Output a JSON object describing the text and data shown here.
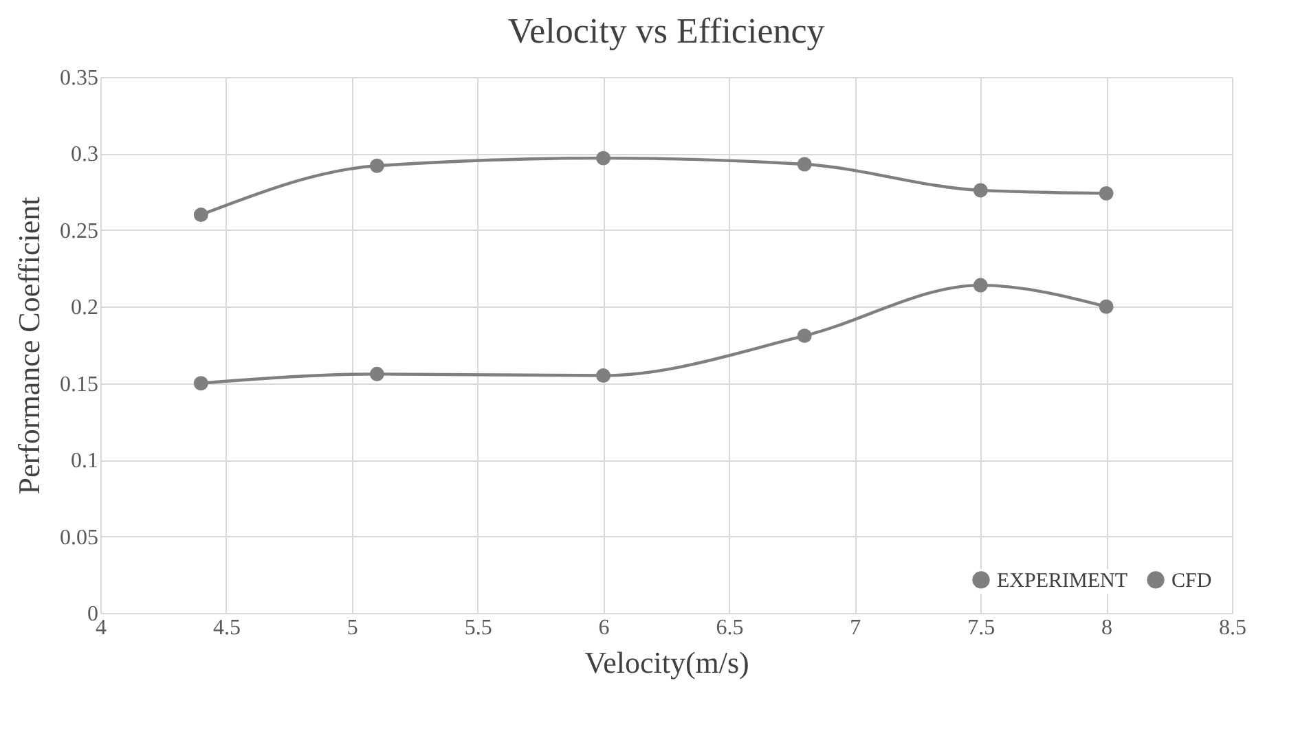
{
  "chart_data": {
    "type": "line",
    "title": "Velocity vs Efficiency",
    "xlabel": "Velocity(m/s)",
    "ylabel": "Performance Coefficient",
    "x": [
      4.4,
      5.1,
      6,
      6.8,
      7.5,
      8
    ],
    "series": [
      {
        "name": "EXPERIMENT",
        "color": "#7f7f7f",
        "values": [
          0.15,
          0.156,
          0.155,
          0.181,
          0.214,
          0.2
        ]
      },
      {
        "name": "CFD",
        "color": "#7f7f7f",
        "values": [
          0.26,
          0.292,
          0.297,
          0.293,
          0.276,
          0.274
        ]
      }
    ],
    "xlim": [
      4,
      8.5
    ],
    "xticks": [
      4,
      4.5,
      5,
      5.5,
      6,
      6.5,
      7,
      7.5,
      8,
      8.5
    ],
    "ylim": [
      0,
      0.35
    ],
    "yticks": [
      0,
      0.05,
      0.1,
      0.15,
      0.2,
      0.25,
      0.3,
      0.35
    ],
    "grid": true,
    "legend": "bottom right",
    "marker": "circle",
    "line_style": "solid"
  }
}
